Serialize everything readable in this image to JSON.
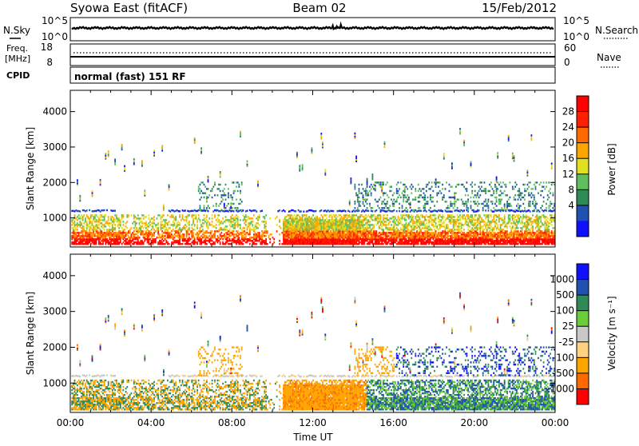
{
  "header": {
    "station": "Syowa East (fitACF)",
    "beam": "Beam 02",
    "date": "15/Feb/2012"
  },
  "noise_panel": {
    "left_label": "N.Sky",
    "right_label": "N.Search",
    "right_ticks": [
      "10^5",
      "10^0"
    ],
    "left_ticks": [
      "10^5",
      "10^0"
    ]
  },
  "freq_panel": {
    "left_label_line1": "Freq.",
    "left_label_line2": "[MHz]",
    "left_ticks": [
      "18",
      "8"
    ],
    "right_label": "Nave",
    "right_ticks": [
      "60",
      "0"
    ]
  },
  "cpid": {
    "label": "CPID",
    "mode": "normal (fast) 151 RF"
  },
  "colors": {
    "power_scale": [
      "#1010ff",
      "#2050b0",
      "#2e8b57",
      "#5fbf5f",
      "#e0e020",
      "#ffa500",
      "#ff6a00",
      "#ff2000",
      "#ff0000"
    ],
    "velocity_scale": [
      "#ff0000",
      "#ff6a00",
      "#ffa500",
      "#ffd27f",
      "#c8c8c8",
      "#6acd3a",
      "#2e8b57",
      "#2050b0",
      "#1010ff"
    ]
  },
  "chart_data": [
    {
      "type": "heatmap",
      "name": "power",
      "xlabel": "",
      "ylabel": "Slant Range [km]",
      "yticks": [
        "1000",
        "2000",
        "3000",
        "4000"
      ],
      "ylim": [
        180,
        4600
      ],
      "xlim_hours": [
        0,
        24
      ],
      "colorbar": {
        "label": "Power [dB]",
        "ticks": [
          "4",
          "8",
          "12",
          "16",
          "20",
          "24",
          "28"
        ],
        "range": [
          0,
          30
        ]
      }
    },
    {
      "type": "heatmap",
      "name": "velocity",
      "xlabel": "Time UT",
      "ylabel": "Slant Range [km]",
      "xticks": [
        "00:00",
        "04:00",
        "08:00",
        "12:00",
        "16:00",
        "20:00",
        "00:00"
      ],
      "yticks": [
        "1000",
        "2000",
        "3000",
        "4000"
      ],
      "ylim": [
        180,
        4600
      ],
      "xlim_hours": [
        0,
        24
      ],
      "colorbar": {
        "label": "Velocity [m s⁻¹]",
        "ticks": [
          "1000",
          "500",
          "100",
          "25",
          "-25",
          "-100",
          "-500",
          "-1000"
        ],
        "range": [
          -1000,
          1000
        ]
      }
    }
  ]
}
